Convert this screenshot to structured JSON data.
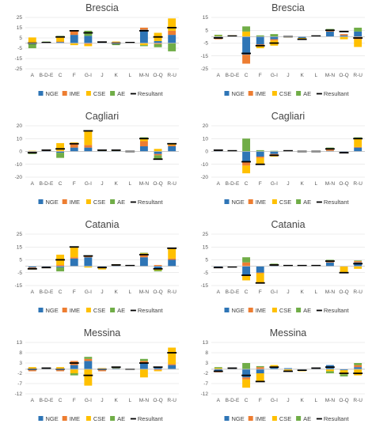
{
  "colors": {
    "NGE": "#2E75B6",
    "IME": "#ED7D31",
    "CSE": "#FFC000",
    "AE": "#70AD47",
    "Resultant": "#000000",
    "axis": "#BFBFBF",
    "grid": "#D9D9D9"
  },
  "chart_data": [
    {
      "type": "bar",
      "stacked": true,
      "title": "Brescia",
      "categories": [
        "A",
        "B-D-E",
        "C",
        "F",
        "G-I",
        "J",
        "K",
        "L",
        "M-N",
        "O-Q",
        "R-U"
      ],
      "ylim": [
        -25,
        25
      ],
      "yticks": [
        -25,
        -15,
        -5,
        5,
        15,
        25
      ],
      "series": [
        {
          "name": "NGE",
          "values": [
            -1,
            0.5,
            1,
            8,
            7,
            0.5,
            -1,
            0.5,
            13,
            2,
            8
          ]
        },
        {
          "name": "IME",
          "values": [
            0.5,
            0,
            0.5,
            4,
            -1,
            0,
            1,
            0,
            2,
            -1,
            4
          ]
        },
        {
          "name": "CSE",
          "values": [
            5,
            0.5,
            5,
            -2,
            -2,
            0.5,
            0.5,
            0,
            -2,
            8,
            12
          ]
        },
        {
          "name": "AE",
          "values": [
            -4,
            0.5,
            0.5,
            0.5,
            5,
            0.5,
            -1,
            0,
            -1,
            -3,
            -8
          ]
        }
      ],
      "resultant": [
        0,
        0.5,
        6,
        12,
        10,
        1,
        0,
        0.5,
        12,
        6,
        15
      ]
    },
    {
      "type": "bar",
      "stacked": true,
      "title": "Brescia",
      "categories": [
        "A",
        "B-D-E",
        "C",
        "F",
        "G-I",
        "J",
        "K",
        "L",
        "M-N",
        "O-Q",
        "R-U"
      ],
      "ylim": [
        -25,
        15
      ],
      "yticks": [
        -25,
        -15,
        -5,
        5,
        15
      ],
      "series": [
        {
          "name": "NGE",
          "values": [
            -1,
            0.5,
            -14,
            -6,
            -2,
            0.5,
            -1,
            0.5,
            4,
            1,
            4
          ]
        },
        {
          "name": "IME",
          "values": [
            -1,
            0,
            -7,
            -1,
            -1,
            0,
            0,
            0,
            1,
            1,
            -2
          ]
        },
        {
          "name": "CSE",
          "values": [
            0.5,
            0.5,
            4,
            -2,
            -4,
            -0.5,
            -1,
            0,
            0.5,
            -2,
            -6
          ]
        },
        {
          "name": "AE",
          "values": [
            1,
            0,
            4,
            1,
            2,
            0,
            0,
            0,
            0.5,
            0,
            3
          ]
        }
      ],
      "resultant": [
        -1,
        0.5,
        -13,
        -7,
        -5,
        0,
        -2,
        0.5,
        5,
        4,
        -1
      ]
    },
    {
      "type": "bar",
      "stacked": true,
      "title": "Cagliari",
      "categories": [
        "A",
        "B-D-E",
        "C",
        "F",
        "G-I",
        "J",
        "K",
        "L",
        "M-N",
        "O-Q",
        "R-U"
      ],
      "ylim": [
        -20,
        20
      ],
      "yticks": [
        -20,
        -10,
        0,
        10,
        20
      ],
      "series": [
        {
          "name": "NGE",
          "values": [
            -0.5,
            0.5,
            -1,
            3,
            3,
            0.5,
            0.5,
            0,
            4,
            -2,
            4
          ]
        },
        {
          "name": "IME",
          "values": [
            -0.5,
            0.5,
            0.5,
            3,
            2,
            0,
            0,
            0,
            4,
            -1,
            1
          ]
        },
        {
          "name": "CSE",
          "values": [
            0.5,
            0.5,
            6,
            1,
            11,
            0.5,
            0.5,
            0,
            2,
            2,
            1
          ]
        },
        {
          "name": "AE",
          "values": [
            -1,
            0,
            -4,
            0,
            0.5,
            0,
            0,
            0,
            1,
            -3,
            0.5
          ]
        }
      ],
      "resultant": [
        -1,
        1,
        2,
        6,
        16,
        1,
        1,
        0,
        10,
        -6,
        6
      ]
    },
    {
      "type": "bar",
      "stacked": true,
      "title": "Cagliari",
      "categories": [
        "A",
        "B-D-E",
        "C",
        "F",
        "G-I",
        "J",
        "K",
        "L",
        "M-N",
        "O-Q",
        "R-U"
      ],
      "ylim": [
        -20,
        20
      ],
      "yticks": [
        -20,
        -10,
        0,
        10,
        20
      ],
      "series": [
        {
          "name": "NGE",
          "values": [
            0.5,
            0.5,
            -8,
            -4,
            -2,
            0.5,
            0,
            0,
            0.5,
            -1,
            3
          ]
        },
        {
          "name": "IME",
          "values": [
            0.5,
            0,
            -3,
            -1,
            -1,
            0,
            0,
            0,
            1,
            0,
            0.5
          ]
        },
        {
          "name": "CSE",
          "values": [
            0.5,
            0,
            -6,
            -5,
            -1,
            0,
            0,
            0,
            1,
            0,
            7
          ]
        },
        {
          "name": "AE",
          "values": [
            0,
            0,
            10,
            1,
            0.5,
            0,
            0,
            0,
            0.5,
            0,
            0.5
          ]
        }
      ],
      "resultant": [
        1,
        0.5,
        -8,
        -10,
        -3,
        0.5,
        0,
        0,
        2,
        -1,
        10
      ]
    },
    {
      "type": "bar",
      "stacked": true,
      "title": "Catania",
      "categories": [
        "A",
        "B-D-E",
        "C",
        "F",
        "G-I",
        "J",
        "K",
        "L",
        "M-N",
        "O-Q",
        "R-U"
      ],
      "ylim": [
        -15,
        25
      ],
      "yticks": [
        -15,
        -5,
        5,
        15,
        25
      ],
      "series": [
        {
          "name": "NGE",
          "values": [
            -1,
            -0.5,
            -1,
            6,
            7,
            -1,
            0.5,
            0.5,
            7,
            -2,
            5
          ]
        },
        {
          "name": "IME",
          "values": [
            -0.5,
            -0.5,
            1,
            1,
            1,
            -0.5,
            0.5,
            0,
            2,
            1,
            1
          ]
        },
        {
          "name": "CSE",
          "values": [
            -1,
            -0.5,
            8,
            8,
            -1,
            -1,
            0.5,
            0,
            1,
            -1,
            8
          ]
        },
        {
          "name": "AE",
          "values": [
            0,
            0,
            -3,
            0.5,
            0.5,
            0,
            0,
            0,
            0.5,
            -1,
            0
          ]
        }
      ],
      "resultant": [
        -2,
        -1,
        5,
        15,
        8,
        -1,
        1,
        0.5,
        9,
        -2,
        14
      ]
    },
    {
      "type": "bar",
      "stacked": true,
      "title": "Catania",
      "categories": [
        "A",
        "B-D-E",
        "C",
        "F",
        "G-I",
        "J",
        "K",
        "L",
        "M-N",
        "O-Q",
        "R-U"
      ],
      "ylim": [
        -15,
        25
      ],
      "yticks": [
        -15,
        -5,
        5,
        15,
        25
      ],
      "series": [
        {
          "name": "NGE",
          "values": [
            -1,
            -0.5,
            -7,
            -5,
            0.5,
            0.5,
            0.5,
            0.5,
            3,
            0,
            3
          ]
        },
        {
          "name": "IME",
          "values": [
            -0.5,
            0,
            3,
            -0.5,
            0.5,
            0,
            0,
            0,
            1,
            0,
            1
          ]
        },
        {
          "name": "CSE",
          "values": [
            0,
            0,
            -4,
            -8,
            0.5,
            0,
            0,
            0,
            0.5,
            -5,
            -2
          ]
        },
        {
          "name": "AE",
          "values": [
            0,
            0,
            4,
            0,
            0.5,
            0,
            0,
            0,
            0.5,
            0,
            0.5
          ]
        }
      ],
      "resultant": [
        -1,
        -0.5,
        -7,
        -13,
        1,
        0.5,
        0.5,
        0.5,
        4,
        -5,
        2
      ]
    },
    {
      "type": "bar",
      "stacked": true,
      "title": "Messina",
      "categories": [
        "A",
        "B-D-E",
        "C",
        "F",
        "G-I",
        "J",
        "K",
        "L",
        "M-N",
        "O-Q",
        "R-U"
      ],
      "ylim": [
        -12,
        13
      ],
      "yticks": [
        -12,
        -7,
        -2,
        3,
        8,
        13
      ],
      "series": [
        {
          "name": "NGE",
          "values": [
            -0.5,
            0.5,
            -0.5,
            2,
            4,
            -0.5,
            0.5,
            0,
            3,
            1,
            2
          ]
        },
        {
          "name": "IME",
          "values": [
            -0.5,
            0,
            -0.5,
            2,
            1,
            -0.5,
            0,
            0,
            1,
            -0.5,
            0.5
          ]
        },
        {
          "name": "CSE",
          "values": [
            1,
            0,
            1,
            -2,
            -8,
            0.5,
            0.5,
            0,
            -4,
            -0.5,
            8
          ]
        },
        {
          "name": "AE",
          "values": [
            0,
            0,
            0,
            -1,
            1,
            0,
            0,
            0,
            1,
            0,
            0
          ]
        }
      ],
      "resultant": [
        0,
        0.5,
        0,
        3,
        -3,
        0,
        1,
        0,
        3,
        1,
        8
      ]
    },
    {
      "type": "bar",
      "stacked": true,
      "title": "Messina",
      "categories": [
        "A",
        "B-D-E",
        "C",
        "F",
        "G-I",
        "J",
        "K",
        "L",
        "M-N",
        "O-Q",
        "R-U"
      ],
      "ylim": [
        -12,
        13
      ],
      "yticks": [
        -12,
        -7,
        -2,
        3,
        8,
        13
      ],
      "series": [
        {
          "name": "NGE",
          "values": [
            -1,
            0.5,
            -4,
            -2,
            1,
            0.5,
            -0.5,
            0.5,
            2,
            -0.5,
            1
          ]
        },
        {
          "name": "IME",
          "values": [
            -0.5,
            0,
            -1,
            1,
            0,
            0,
            0,
            0,
            0,
            0,
            1
          ]
        },
        {
          "name": "CSE",
          "values": [
            0.5,
            0,
            -4,
            -4,
            1,
            -1,
            -0.5,
            0,
            -1,
            -2,
            -3
          ]
        },
        {
          "name": "AE",
          "values": [
            0.5,
            0,
            3,
            0.5,
            0,
            0,
            0,
            0,
            -1,
            -1,
            1
          ]
        }
      ],
      "resultant": [
        -1,
        0.5,
        -3,
        -6,
        1,
        -1,
        -0.5,
        0.5,
        1,
        -2,
        -2
      ]
    }
  ]
}
